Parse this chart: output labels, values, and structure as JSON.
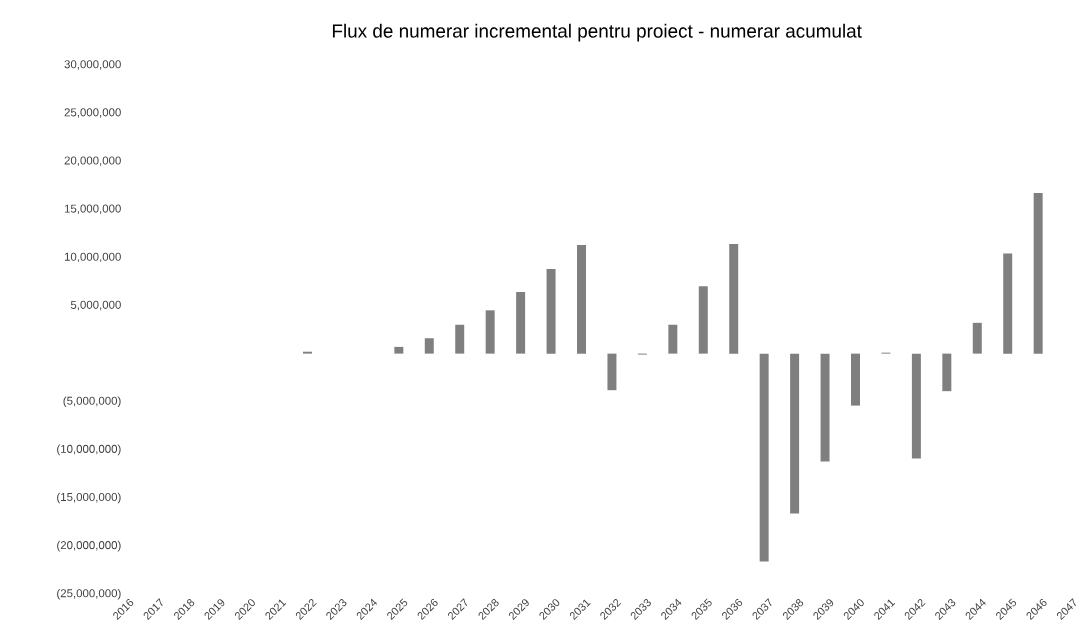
{
  "chart_data": {
    "type": "bar",
    "title": "Flux de numerar incremental pentru proiect - numerar acumulat",
    "categories": [
      "2016",
      "2017",
      "2018",
      "2019",
      "2020",
      "2021",
      "2022",
      "2023",
      "2024",
      "2025",
      "2026",
      "2027",
      "2028",
      "2029",
      "2030",
      "2031",
      "2032",
      "2033",
      "2034",
      "2035",
      "2036",
      "2037",
      "2038",
      "2039",
      "2040",
      "2041",
      "2042",
      "2043",
      "2044",
      "2045",
      "2046",
      "2047"
    ],
    "values": [
      0,
      0,
      0,
      0,
      0,
      0,
      200000,
      0,
      0,
      700000,
      1600000,
      3000000,
      4500000,
      6400000,
      8800000,
      11300000,
      -3800000,
      -100000,
      3000000,
      7000000,
      11400000,
      -21600000,
      -16600000,
      -11200000,
      -5400000,
      100000,
      -10900000,
      -3900000,
      3200000,
      10400000,
      16700000,
      0
    ],
    "color": "#7f7f7f",
    "ylim": [
      -25000000,
      30000000
    ],
    "yticks": [
      {
        "value": -25000000,
        "label": "(25,000,000)"
      },
      {
        "value": -20000000,
        "label": "(20,000,000)"
      },
      {
        "value": -15000000,
        "label": "(15,000,000)"
      },
      {
        "value": -10000000,
        "label": "(10,000,000)"
      },
      {
        "value": -5000000,
        "label": "(5,000,000)"
      },
      {
        "value": 5000000,
        "label": "5,000,000"
      },
      {
        "value": 10000000,
        "label": "10,000,000"
      },
      {
        "value": 15000000,
        "label": "15,000,000"
      },
      {
        "value": 20000000,
        "label": "20,000,000"
      },
      {
        "value": 25000000,
        "label": "25,000,000"
      },
      {
        "value": 30000000,
        "label": "30,000,000"
      }
    ],
    "grid": false
  }
}
